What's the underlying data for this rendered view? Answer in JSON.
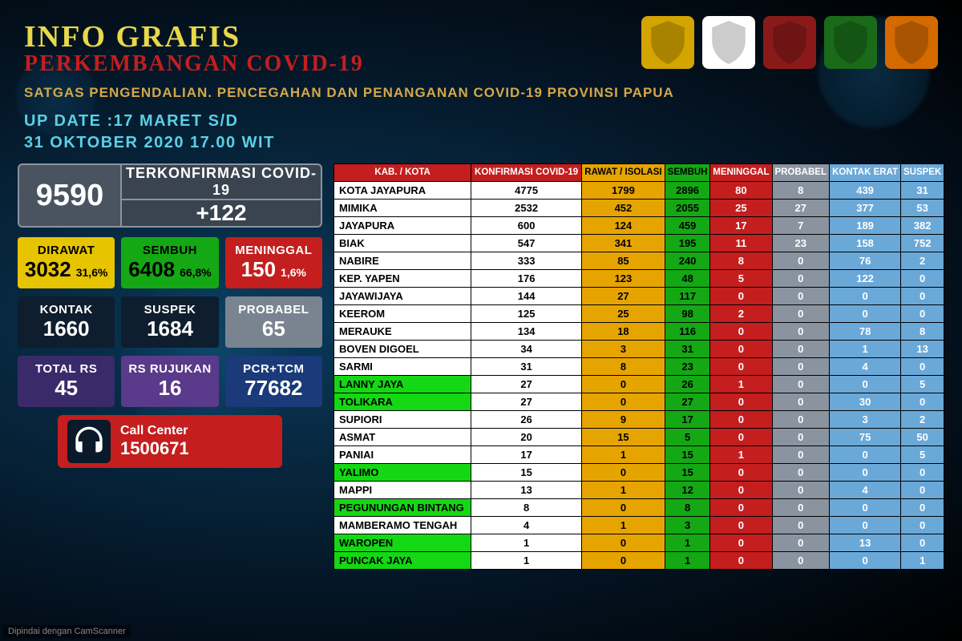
{
  "header": {
    "title_line1": "INFO GRAFIS",
    "title_line2": "PERKEMBANGAN COVID-19",
    "subtitle": "SATGAS PENGENDALIAN. PENCEGAHAN DAN PENANGANAN COVID-19 PROVINSI PAPUA",
    "logos": [
      "PAPUA",
      "KEMENKES",
      "POLDA",
      "TNI",
      "BNPB"
    ],
    "logo_bg": [
      "#d4a400",
      "#ffffff",
      "#8a1a1a",
      "#1a6a1a",
      "#d46a00"
    ]
  },
  "update": {
    "prefix": "UP DATE :",
    "date1": "17 MARET S/D",
    "date2": "31 OKTOBER 2020 17.00 WIT"
  },
  "confirmed": {
    "label": "TERKONFIRMASI COVID-19",
    "total": "9590",
    "delta": "+122"
  },
  "stats": {
    "dirawat": {
      "label": "DIRAWAT",
      "value": "3032",
      "pct": "31,6%",
      "bg": "#e6c400",
      "fg": "#000000"
    },
    "sembuh": {
      "label": "SEMBUH",
      "value": "6408",
      "pct": "66,8%",
      "bg": "#14a814",
      "fg": "#000000"
    },
    "meninggal": {
      "label": "MENINGGAL",
      "value": "150",
      "pct": "1,6%",
      "bg": "#c41e1e",
      "fg": "#ffffff"
    },
    "kontak": {
      "label": "KONTAK",
      "value": "1660",
      "bg": "#0e1e2e",
      "fg": "#ffffff"
    },
    "suspek": {
      "label": "SUSPEK",
      "value": "1684",
      "bg": "#0e1e2e",
      "fg": "#ffffff"
    },
    "probabel": {
      "label": "PROBABEL",
      "value": "65",
      "bg": "#7a8490",
      "fg": "#ffffff"
    },
    "totalrs": {
      "label": "TOTAL RS",
      "value": "45",
      "bg": "#3a2a6a",
      "fg": "#ffffff"
    },
    "rsrujukan": {
      "label": "RS RUJUKAN",
      "value": "16",
      "bg": "#5a3a8a",
      "fg": "#ffffff"
    },
    "pcrtcm": {
      "label": "PCR+TCM",
      "value": "77682",
      "bg": "#1a3a7a",
      "fg": "#ffffff"
    }
  },
  "callcenter": {
    "label": "Call Center",
    "number": "1500671"
  },
  "table": {
    "columns": [
      "KAB. / KOTA",
      "KONFIRMASI COVID-19",
      "RAWAT / ISOLASI",
      "SEMBUH",
      "MENINGGAL",
      "PROBABEL",
      "KONTAK ERAT",
      "SUSPEK"
    ],
    "header_bg": [
      "#c41e1e",
      "#c41e1e",
      "#e6a400",
      "#14a814",
      "#c41e1e",
      "#8a94a0",
      "#6aa8d8",
      "#6aa8d8"
    ],
    "header_fg": [
      "#ffffff",
      "#ffffff",
      "#000000",
      "#000000",
      "#ffffff",
      "#ffffff",
      "#ffffff",
      "#ffffff"
    ],
    "col_bg": [
      "#ffffff",
      "#ffffff",
      "#e6a400",
      "#14a814",
      "#c41e1e",
      "#8a94a0",
      "#6aa8d8",
      "#6aa8d8"
    ],
    "col_fg": [
      "#000000",
      "#000000",
      "#000000",
      "#000000",
      "#ffffff",
      "#ffffff",
      "#ffffff",
      "#ffffff"
    ],
    "green_rows": [
      11,
      12,
      16,
      18,
      20,
      21
    ],
    "green_bg": "#14d814",
    "rows": [
      [
        "KOTA JAYAPURA",
        "4775",
        "1799",
        "2896",
        "80",
        "8",
        "439",
        "31"
      ],
      [
        "MIMIKA",
        "2532",
        "452",
        "2055",
        "25",
        "27",
        "377",
        "53"
      ],
      [
        "JAYAPURA",
        "600",
        "124",
        "459",
        "17",
        "7",
        "189",
        "382"
      ],
      [
        "BIAK",
        "547",
        "341",
        "195",
        "11",
        "23",
        "158",
        "752"
      ],
      [
        "NABIRE",
        "333",
        "85",
        "240",
        "8",
        "0",
        "76",
        "2"
      ],
      [
        "KEP. YAPEN",
        "176",
        "123",
        "48",
        "5",
        "0",
        "122",
        "0"
      ],
      [
        "JAYAWIJAYA",
        "144",
        "27",
        "117",
        "0",
        "0",
        "0",
        "0"
      ],
      [
        "KEEROM",
        "125",
        "25",
        "98",
        "2",
        "0",
        "0",
        "0"
      ],
      [
        "MERAUKE",
        "134",
        "18",
        "116",
        "0",
        "0",
        "78",
        "8"
      ],
      [
        "BOVEN DIGOEL",
        "34",
        "3",
        "31",
        "0",
        "0",
        "1",
        "13"
      ],
      [
        "SARMI",
        "31",
        "8",
        "23",
        "0",
        "0",
        "4",
        "0"
      ],
      [
        "LANNY JAYA",
        "27",
        "0",
        "26",
        "1",
        "0",
        "0",
        "5"
      ],
      [
        "TOLIKARA",
        "27",
        "0",
        "27",
        "0",
        "0",
        "30",
        "0"
      ],
      [
        "SUPIORI",
        "26",
        "9",
        "17",
        "0",
        "0",
        "3",
        "2"
      ],
      [
        "ASMAT",
        "20",
        "15",
        "5",
        "0",
        "0",
        "75",
        "50"
      ],
      [
        "PANIAI",
        "17",
        "1",
        "15",
        "1",
        "0",
        "0",
        "5"
      ],
      [
        "YALIMO",
        "15",
        "0",
        "15",
        "0",
        "0",
        "0",
        "0"
      ],
      [
        "MAPPI",
        "13",
        "1",
        "12",
        "0",
        "0",
        "4",
        "0"
      ],
      [
        "PEGUNUNGAN BINTANG",
        "8",
        "0",
        "8",
        "0",
        "0",
        "0",
        "0"
      ],
      [
        "MAMBERAMO TENGAH",
        "4",
        "1",
        "3",
        "0",
        "0",
        "0",
        "0"
      ],
      [
        "WAROPEN",
        "1",
        "0",
        "1",
        "0",
        "0",
        "13",
        "0"
      ],
      [
        "PUNCAK JAYA",
        "1",
        "0",
        "1",
        "0",
        "0",
        "0",
        "1"
      ]
    ]
  },
  "footer_note": "Dipindai dengan CamScanner"
}
